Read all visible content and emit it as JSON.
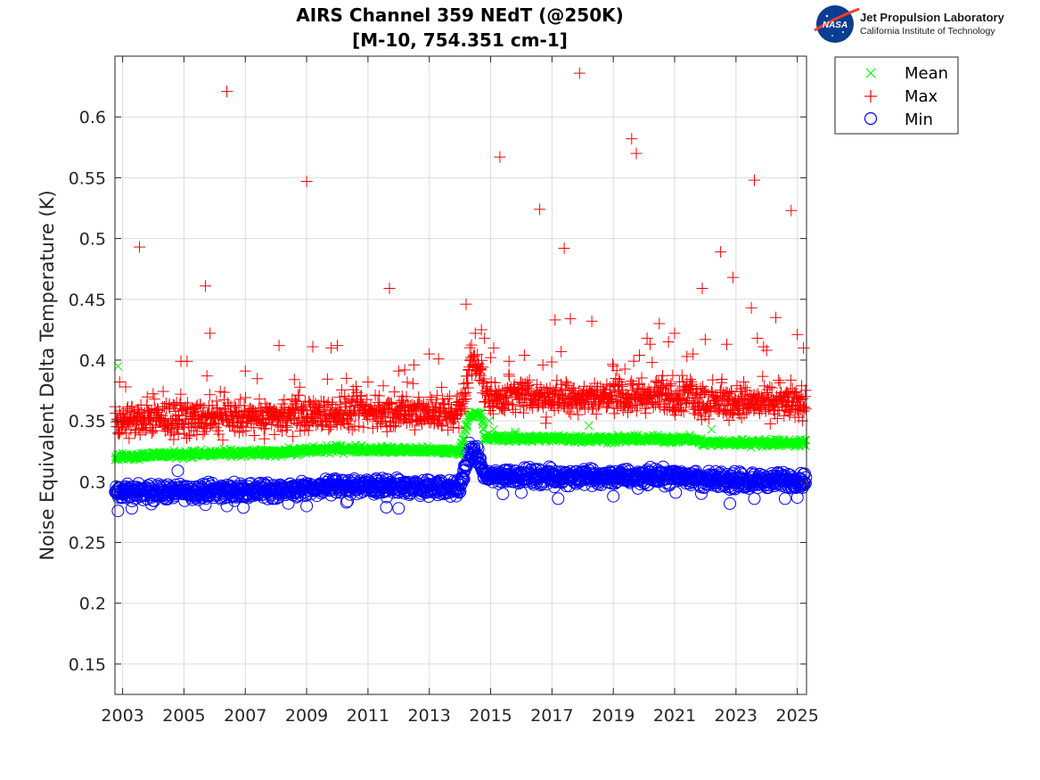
{
  "logo": {
    "badge": "NASA",
    "name": "Jet Propulsion Laboratory",
    "subtitle": "California Institute of Technology"
  },
  "colors": {
    "mean": "#00ff00",
    "max": "#ff0000",
    "min": "#0000ff",
    "grid": "#dcdcdc",
    "axis": "#262626"
  },
  "chart_data": {
    "type": "scatter",
    "title": [
      "AIRS Channel 359 NEdT (@250K)",
      "[M-10, 754.351 cm-1]"
    ],
    "xlabel": "",
    "ylabel": "Noise Equivalent Delta Temperature (K)",
    "xlim": [
      2002.75,
      2025.3
    ],
    "ylim": [
      0.125,
      0.65
    ],
    "xticks": [
      "2003",
      "2005",
      "2007",
      "2009",
      "2011",
      "2013",
      "2015",
      "2017",
      "2019",
      "2021",
      "2023",
      "2025"
    ],
    "yticks": [
      "0.15",
      "0.2",
      "0.25",
      "0.3",
      "0.35",
      "0.4",
      "0.45",
      "0.5",
      "0.55",
      "0.6"
    ],
    "grid": true,
    "legend_position": "outside-top-right",
    "series": [
      {
        "name": "Mean",
        "marker": "x",
        "baseline": [
          [
            2002.75,
            0.32
          ],
          [
            2004.0,
            0.322
          ],
          [
            2008.0,
            0.324
          ],
          [
            2010.0,
            0.327
          ],
          [
            2014.0,
            0.325
          ],
          [
            2014.3,
            0.355
          ],
          [
            2014.7,
            0.355
          ],
          [
            2014.8,
            0.336
          ],
          [
            2019.0,
            0.335
          ],
          [
            2021.5,
            0.335
          ],
          [
            2022.0,
            0.332
          ],
          [
            2025.3,
            0.332
          ]
        ],
        "spread": 0.0025,
        "outliers": [
          [
            2002.85,
            0.395
          ],
          [
            2014.75,
            0.347
          ],
          [
            2014.95,
            0.35
          ],
          [
            2015.1,
            0.343
          ],
          [
            2015.8,
            0.341
          ],
          [
            2018.2,
            0.346
          ],
          [
            2022.2,
            0.343
          ]
        ]
      },
      {
        "name": "Max",
        "marker": "+",
        "baseline": [
          [
            2002.75,
            0.35
          ],
          [
            2008.0,
            0.353
          ],
          [
            2010.0,
            0.357
          ],
          [
            2014.0,
            0.356
          ],
          [
            2014.3,
            0.392
          ],
          [
            2014.7,
            0.392
          ],
          [
            2014.8,
            0.37
          ],
          [
            2019.0,
            0.37
          ],
          [
            2021.5,
            0.37
          ],
          [
            2022.0,
            0.365
          ],
          [
            2025.3,
            0.365
          ]
        ],
        "spread": 0.011,
        "outliers": [
          [
            2002.85,
            0.34
          ],
          [
            2002.9,
            0.382
          ],
          [
            2003.1,
            0.378
          ],
          [
            2003.55,
            0.493
          ],
          [
            2004.9,
            0.399
          ],
          [
            2005.1,
            0.399
          ],
          [
            2005.7,
            0.461
          ],
          [
            2005.85,
            0.422
          ],
          [
            2005.75,
            0.387
          ],
          [
            2006.4,
            0.621
          ],
          [
            2007.0,
            0.391
          ],
          [
            2008.1,
            0.412
          ],
          [
            2008.6,
            0.384
          ],
          [
            2009.0,
            0.547
          ],
          [
            2009.2,
            0.411
          ],
          [
            2009.8,
            0.41
          ],
          [
            2010.0,
            0.412
          ],
          [
            2010.3,
            0.385
          ],
          [
            2011.0,
            0.382
          ],
          [
            2011.7,
            0.459
          ],
          [
            2012.0,
            0.391
          ],
          [
            2012.2,
            0.392
          ],
          [
            2012.5,
            0.396
          ],
          [
            2013.0,
            0.405
          ],
          [
            2013.3,
            0.401
          ],
          [
            2014.2,
            0.446
          ],
          [
            2014.5,
            0.422
          ],
          [
            2014.7,
            0.425
          ],
          [
            2014.8,
            0.418
          ],
          [
            2015.0,
            0.402
          ],
          [
            2015.1,
            0.41
          ],
          [
            2015.3,
            0.567
          ],
          [
            2015.6,
            0.399
          ],
          [
            2016.1,
            0.404
          ],
          [
            2016.6,
            0.524
          ],
          [
            2016.8,
            0.348
          ],
          [
            2017.1,
            0.433
          ],
          [
            2017.3,
            0.407
          ],
          [
            2017.4,
            0.492
          ],
          [
            2017.6,
            0.434
          ],
          [
            2017.9,
            0.636
          ],
          [
            2018.3,
            0.432
          ],
          [
            2019.0,
            0.395
          ],
          [
            2019.6,
            0.582
          ],
          [
            2019.75,
            0.57
          ],
          [
            2019.85,
            0.404
          ],
          [
            2020.1,
            0.418
          ],
          [
            2020.2,
            0.413
          ],
          [
            2020.5,
            0.43
          ],
          [
            2020.8,
            0.415
          ],
          [
            2021.0,
            0.422
          ],
          [
            2021.4,
            0.403
          ],
          [
            2021.6,
            0.405
          ],
          [
            2021.9,
            0.459
          ],
          [
            2022.0,
            0.417
          ],
          [
            2022.5,
            0.489
          ],
          [
            2022.7,
            0.413
          ],
          [
            2022.9,
            0.468
          ],
          [
            2023.5,
            0.443
          ],
          [
            2023.6,
            0.548
          ],
          [
            2023.7,
            0.418
          ],
          [
            2023.9,
            0.411
          ],
          [
            2024.0,
            0.408
          ],
          [
            2024.3,
            0.435
          ],
          [
            2024.8,
            0.523
          ],
          [
            2025.0,
            0.421
          ],
          [
            2025.2,
            0.41
          ]
        ]
      },
      {
        "name": "Min",
        "marker": "o",
        "baseline": [
          [
            2002.75,
            0.291
          ],
          [
            2008.0,
            0.293
          ],
          [
            2010.0,
            0.296
          ],
          [
            2014.0,
            0.295
          ],
          [
            2014.3,
            0.325
          ],
          [
            2014.6,
            0.32
          ],
          [
            2014.8,
            0.305
          ],
          [
            2019.0,
            0.304
          ],
          [
            2021.5,
            0.305
          ],
          [
            2022.0,
            0.301
          ],
          [
            2025.3,
            0.301
          ]
        ],
        "spread": 0.0055,
        "outliers": [
          [
            2002.85,
            0.276
          ],
          [
            2003.3,
            0.278
          ],
          [
            2004.8,
            0.309
          ],
          [
            2005.7,
            0.281
          ],
          [
            2006.4,
            0.28
          ],
          [
            2009.0,
            0.28
          ],
          [
            2010.3,
            0.283
          ],
          [
            2011.6,
            0.279
          ],
          [
            2012.0,
            0.278
          ],
          [
            2015.4,
            0.29
          ],
          [
            2016.0,
            0.291
          ],
          [
            2017.2,
            0.286
          ],
          [
            2019.0,
            0.288
          ],
          [
            2022.8,
            0.282
          ],
          [
            2023.6,
            0.286
          ],
          [
            2024.6,
            0.286
          ],
          [
            2025.0,
            0.287
          ]
        ]
      }
    ]
  }
}
